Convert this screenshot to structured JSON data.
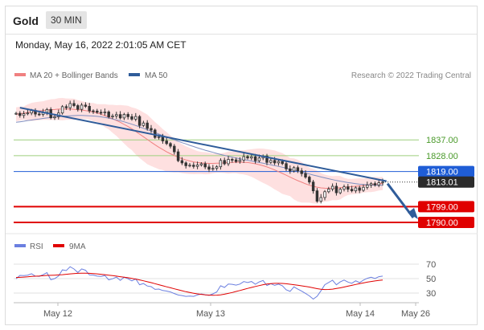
{
  "header": {
    "asset": "Gold",
    "timeframe": "30 MIN",
    "datetime": "Monday, May 16, 2022 2:01:05 AM CET"
  },
  "legend": {
    "ma20": "MA 20 + Bollinger Bands",
    "ma50": "MA 50",
    "credit": "Research © 2022 Trading Central"
  },
  "rsi_legend": {
    "rsi": "RSI",
    "ma9": "9MA"
  },
  "colors": {
    "ma20": "#f08080",
    "ma50": "#2f5c9a",
    "bollinger": "#fdd6d6",
    "support": "#e00000",
    "resistance": "#9dcf7d",
    "pivot": "#1f5dd6",
    "trend": "#2f5c9a",
    "candle": "#333333",
    "rsi": "#6b7fe0",
    "rsi_ma": "#e00000"
  },
  "chart_data": [
    {
      "type": "candlestick",
      "title": "Gold",
      "x_ticks": [
        "May 12",
        "May 13",
        "May 14",
        "May 26"
      ],
      "ylim": [
        1785,
        1870
      ],
      "last_price": 1813.01,
      "levels": [
        {
          "label": "1837.00",
          "value": 1837.0,
          "kind": "resistance"
        },
        {
          "label": "1828.00",
          "value": 1828.0,
          "kind": "resistance"
        },
        {
          "label": "1819.00",
          "value": 1819.0,
          "kind": "pivot"
        },
        {
          "label": "1813.01",
          "value": 1813.01,
          "kind": "last"
        },
        {
          "label": "1799.00",
          "value": 1799.0,
          "kind": "support"
        },
        {
          "label": "1790.00",
          "value": 1790.0,
          "kind": "support"
        }
      ],
      "trendline": {
        "from": [
          1855.3,
          1
        ],
        "to": [
          1813.5,
          96
        ]
      },
      "forecast_arrow": {
        "from": 1813.01,
        "to": 1790.0
      },
      "closes": [
        1852.1,
        1850.9,
        1851.9,
        1852.3,
        1853.7,
        1851.7,
        1851.5,
        1852.7,
        1854.3,
        1849.6,
        1850.2,
        1852.3,
        1855.9,
        1855.3,
        1857.7,
        1856.5,
        1854.4,
        1856.8,
        1856.1,
        1853.5,
        1853.4,
        1852.7,
        1852.4,
        1852.9,
        1850.1,
        1850.6,
        1851.4,
        1849.5,
        1851.5,
        1850.2,
        1848.8,
        1850.3,
        1845.2,
        1846.6,
        1843.5,
        1842.6,
        1838.4,
        1838.8,
        1836.4,
        1834.9,
        1833.4,
        1830.2,
        1825.2,
        1823.9,
        1822.3,
        1822.6,
        1821.9,
        1822.7,
        1823.4,
        1821.6,
        1820.3,
        1820.8,
        1821.7,
        1825.3,
        1823.4,
        1825.9,
        1825.6,
        1824.7,
        1825.5,
        1827.5,
        1826.7,
        1827.4,
        1825.1,
        1826.7,
        1827.8,
        1824.2,
        1825.3,
        1823.9,
        1824.7,
        1823.5,
        1820.5,
        1819.3,
        1821.2,
        1819.4,
        1817.8,
        1815.8,
        1813.0,
        1808.0,
        1802.1,
        1804.2,
        1807.5,
        1809.0,
        1810.6,
        1806.9,
        1808.9,
        1810.3,
        1808.9,
        1808.0,
        1809.7,
        1808.3,
        1810.0,
        1811.3,
        1812.1,
        1811.3,
        1812.6,
        1813.0
      ],
      "series": [
        {
          "name": "MA 20 + Bollinger Bands",
          "values": [
            1851.5,
            1851.9,
            1852.2,
            1852.6,
            1852.9,
            1853.2,
            1853.5,
            1853.7,
            1854.0,
            1854.2,
            1854.3,
            1854.5,
            1854.5,
            1854.5,
            1854.5,
            1854.4,
            1854.2,
            1854.0,
            1853.7,
            1853.3,
            1852.8,
            1852.3,
            1851.6,
            1850.8,
            1850.0,
            1849.0,
            1848.0,
            1847.0,
            1845.8,
            1844.6,
            1843.3,
            1841.8,
            1840.3,
            1838.8,
            1837.3,
            1835.7,
            1834.2,
            1832.8,
            1831.5,
            1830.2,
            1829.1,
            1828.1,
            1827.1,
            1826.3,
            1825.6,
            1825.0,
            1824.5,
            1824.1,
            1823.9,
            1823.7,
            1823.6,
            1823.6,
            1823.7,
            1823.8,
            1823.9,
            1824.1,
            1824.2,
            1824.3,
            1824.3,
            1824.2,
            1824.1,
            1823.8,
            1823.4,
            1822.9,
            1822.3,
            1821.6,
            1820.8,
            1819.9,
            1818.9,
            1817.9,
            1816.9,
            1815.8,
            1814.8,
            1813.8,
            1812.9,
            1812.0,
            1811.2,
            1810.6,
            1810.1,
            1809.7,
            1809.5,
            1809.4,
            1809.5,
            1809.6,
            1809.8,
            1810.0,
            1810.2,
            1810.4,
            1810.6,
            1810.8,
            1811.0,
            1811.3,
            1811.5,
            1811.8,
            1812.0,
            1812.2
          ]
        },
        {
          "name": "MA 50",
          "values": [
            1847.0,
            1847.3,
            1847.6,
            1848.0,
            1848.3,
            1848.6,
            1848.9,
            1849.2,
            1849.5,
            1849.7,
            1850.0,
            1850.2,
            1850.4,
            1850.6,
            1850.7,
            1850.8,
            1850.9,
            1850.9,
            1850.8,
            1850.7,
            1850.6,
            1850.4,
            1850.1,
            1849.8,
            1849.4,
            1848.9,
            1848.4,
            1847.9,
            1847.3,
            1846.6,
            1845.9,
            1845.2,
            1844.4,
            1843.6,
            1842.8,
            1842.0,
            1841.2,
            1840.3,
            1839.5,
            1838.7,
            1837.8,
            1837.0,
            1836.2,
            1835.4,
            1834.7,
            1833.9,
            1833.2,
            1832.5,
            1831.8,
            1831.1,
            1830.5,
            1829.9,
            1829.3,
            1828.7,
            1828.2,
            1827.7,
            1827.2,
            1826.7,
            1826.3,
            1825.8,
            1825.4,
            1825.0,
            1824.5,
            1824.1,
            1823.7,
            1823.3,
            1822.8,
            1822.4,
            1821.9,
            1821.4,
            1820.9,
            1820.3,
            1819.8,
            1819.3,
            1818.7,
            1818.1,
            1817.6,
            1817.0,
            1816.5,
            1815.9,
            1815.4,
            1814.9,
            1814.4,
            1813.9,
            1813.5,
            1813.1,
            1812.7,
            1812.4,
            1812.1,
            1811.8,
            1811.6,
            1811.5,
            1811.3,
            1811.2,
            1811.2,
            1811.1
          ]
        }
      ]
    },
    {
      "type": "line",
      "title": "RSI",
      "y_ticks": [
        "70",
        "50",
        "30"
      ],
      "ylim": [
        20,
        80
      ],
      "series": [
        {
          "name": "RSI",
          "values": [
            49.8,
            54.4,
            54.2,
            54.8,
            56.8,
            53.5,
            53.1,
            55.4,
            58.2,
            48.4,
            50.0,
            53.6,
            62.1,
            61.1,
            66.4,
            63.3,
            58.4,
            63.5,
            61.6,
            55.1,
            54.9,
            53.5,
            53.0,
            54.3,
            48.3,
            49.8,
            52.1,
            47.6,
            52.0,
            49.8,
            46.9,
            49.5,
            41.6,
            43.2,
            39.8,
            38.9,
            35.1,
            35.6,
            33.6,
            32.8,
            31.6,
            29.3,
            27.3,
            26.5,
            25.4,
            25.9,
            25.5,
            27.4,
            28.8,
            27.7,
            26.8,
            28.9,
            31.5,
            40.1,
            37.8,
            42.5,
            42.1,
            41.0,
            42.4,
            45.9,
            44.7,
            46.0,
            42.2,
            45.5,
            47.4,
            40.4,
            43.0,
            40.7,
            42.3,
            40.1,
            34.4,
            32.3,
            38.6,
            35.4,
            32.7,
            29.5,
            26.1,
            21.7,
            25.6,
            33.1,
            41.5,
            44.7,
            47.8,
            41.4,
            45.4,
            48.0,
            45.2,
            43.6,
            47.0,
            44.4,
            47.9,
            50.4,
            51.9,
            50.2,
            52.7,
            53.4
          ]
        },
        {
          "name": "9MA",
          "values": [
            51.5,
            51.8,
            52.1,
            52.5,
            53.0,
            53.3,
            53.6,
            54.0,
            54.4,
            54.6,
            54.8,
            55.1,
            55.5,
            56.0,
            56.5,
            57.0,
            57.3,
            57.5,
            57.5,
            57.3,
            57.0,
            56.6,
            56.0,
            55.4,
            54.8,
            54.1,
            53.4,
            52.7,
            52.0,
            51.2,
            50.3,
            49.3,
            48.2,
            47.0,
            45.7,
            44.4,
            43.0,
            41.6,
            40.1,
            38.7,
            37.3,
            35.9,
            34.5,
            33.2,
            31.9,
            30.8,
            29.8,
            28.9,
            28.2,
            27.6,
            27.2,
            27.0,
            27.1,
            27.6,
            28.4,
            29.5,
            30.8,
            32.2,
            33.6,
            35.0,
            36.4,
            37.8,
            39.1,
            40.3,
            41.5,
            42.4,
            43.1,
            43.4,
            43.5,
            43.3,
            42.9,
            42.2,
            41.5,
            40.8,
            40.0,
            39.2,
            38.3,
            37.2,
            36.1,
            35.3,
            34.9,
            35.0,
            35.5,
            36.3,
            37.2,
            38.3,
            39.5,
            40.7,
            41.9,
            43.0,
            44.0,
            45.1,
            46.0,
            46.8,
            47.5,
            48.1
          ]
        }
      ]
    }
  ]
}
